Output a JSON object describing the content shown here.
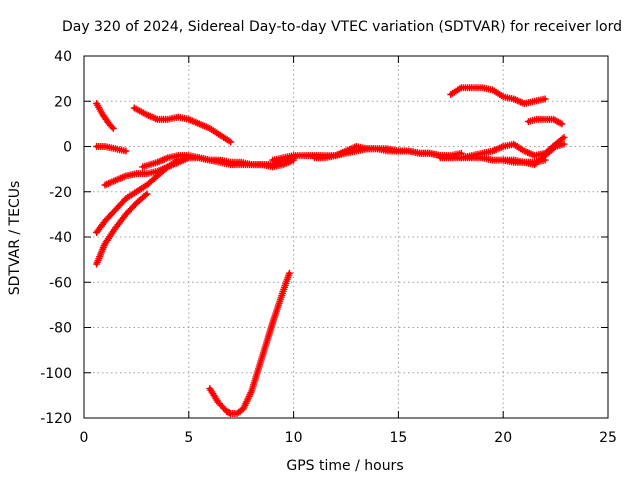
{
  "chart_data": {
    "type": "scatter",
    "title": "Day 320 of 2024, Sidereal Day-to-day VTEC variation (SDTVAR) for receiver lord",
    "xlabel": "GPS time / hours",
    "ylabel": "SDTVAR / TECUs",
    "xlim": [
      0,
      25
    ],
    "ylim": [
      -120,
      40
    ],
    "xticks": [
      0,
      5,
      10,
      15,
      20,
      25
    ],
    "yticks": [
      -120,
      -100,
      -80,
      -60,
      -40,
      -20,
      0,
      20,
      40
    ],
    "xtick_labels": [
      "0",
      "5",
      "10",
      "15",
      "20",
      "25"
    ],
    "ytick_labels": [
      "-120",
      "-100",
      "-80",
      "-60",
      "-40",
      "-20",
      "0",
      "20",
      "40"
    ],
    "grid": true,
    "marker": "+",
    "color": "#ff0000",
    "series": [
      {
        "name": "s1",
        "x": [
          0.6,
          0.9,
          1.2,
          1.4
        ],
        "y": [
          19,
          14,
          10,
          8
        ]
      },
      {
        "name": "s2",
        "x": [
          0.6,
          1.0,
          1.5,
          2.0
        ],
        "y": [
          0,
          0,
          -1,
          -2
        ]
      },
      {
        "name": "s3",
        "x": [
          2.4,
          3.0,
          3.5,
          4.0,
          4.5,
          5.0,
          5.5,
          6.0,
          6.5,
          7.0
        ],
        "y": [
          17,
          14,
          12,
          12,
          13,
          12,
          10,
          8,
          5,
          2
        ]
      },
      {
        "name": "s4",
        "x": [
          0.6,
          1.0,
          1.5,
          2.0,
          2.5,
          3.0,
          3.5,
          4.0,
          4.5
        ],
        "y": [
          -38,
          -33,
          -28,
          -23,
          -20,
          -17,
          -13,
          -9,
          -6
        ]
      },
      {
        "name": "s5",
        "x": [
          0.6,
          1.0,
          1.5,
          2.0,
          2.5,
          3.0
        ],
        "y": [
          -52,
          -43,
          -36,
          -30,
          -25,
          -21
        ]
      },
      {
        "name": "s6",
        "x": [
          1.0,
          1.5,
          2.0,
          2.5,
          3.0,
          3.5,
          4.0
        ],
        "y": [
          -17,
          -15,
          -13,
          -12,
          -12,
          -11,
          -9
        ]
      },
      {
        "name": "s7",
        "x": [
          2.8,
          3.5,
          4.0,
          4.5,
          5.0,
          5.5,
          6.0,
          6.5,
          7.0,
          7.5,
          8.0,
          8.5,
          9.0,
          9.5,
          10.0
        ],
        "y": [
          -9,
          -7,
          -5,
          -4,
          -4,
          -5,
          -6,
          -6,
          -7,
          -7,
          -8,
          -8,
          -8,
          -6,
          -5
        ]
      },
      {
        "name": "s8",
        "x": [
          3.5,
          4.0,
          4.5,
          5.0,
          5.5,
          6.0,
          6.5,
          7.0,
          7.5,
          8.0,
          8.5,
          9.0,
          9.5,
          10.0
        ],
        "y": [
          -12,
          -9,
          -7,
          -5,
          -5,
          -6,
          -7,
          -8,
          -8,
          -8,
          -8,
          -9,
          -8,
          -6
        ]
      },
      {
        "name": "s9",
        "x": [
          9.0,
          10.0,
          11.0,
          12.0,
          12.5,
          13.0,
          13.5,
          14.0,
          14.5,
          15.0,
          15.5,
          16.0,
          16.5,
          17.0,
          17.5,
          18.0
        ],
        "y": [
          -6,
          -4,
          -4,
          -4,
          -2,
          0,
          -1,
          -1,
          -1,
          -2,
          -2,
          -3,
          -3,
          -4,
          -4,
          -3
        ]
      },
      {
        "name": "s10",
        "x": [
          11.0,
          11.5,
          12.0,
          12.5,
          13.0,
          13.5,
          14.0,
          14.5,
          15.0,
          15.5,
          16.0,
          16.5,
          17.0
        ],
        "y": [
          -5,
          -5,
          -4,
          -3,
          -2,
          -1,
          -1,
          -2,
          -2,
          -2,
          -3,
          -3,
          -4
        ]
      },
      {
        "name": "s11",
        "x": [
          17.0,
          17.5,
          18.0,
          18.5,
          19.0,
          19.5,
          20.0,
          20.5,
          21.0,
          21.5,
          22.0
        ],
        "y": [
          -5,
          -5,
          -5,
          -5,
          -5,
          -6,
          -6,
          -7,
          -7,
          -7,
          -6
        ]
      },
      {
        "name": "s12",
        "x": [
          18.0,
          18.5,
          19.0,
          19.5,
          20.0,
          20.5,
          21.0,
          21.5,
          22.0,
          22.5,
          22.9
        ],
        "y": [
          -5,
          -4,
          -3,
          -2,
          0,
          1,
          -2,
          -4,
          -3,
          1,
          4
        ]
      },
      {
        "name": "s13",
        "x": [
          20.0,
          20.5,
          21.0,
          21.5,
          22.0,
          22.5,
          22.9
        ],
        "y": [
          -6,
          -6,
          -7,
          -8,
          -4,
          0,
          1
        ]
      },
      {
        "name": "s14",
        "x": [
          17.5,
          18.0,
          18.5,
          19.0,
          19.5,
          20.0,
          20.5,
          21.0,
          21.5,
          22.0
        ],
        "y": [
          23,
          26,
          26,
          26,
          25,
          22,
          21,
          19,
          20,
          21
        ]
      },
      {
        "name": "s15",
        "x": [
          21.2,
          21.6,
          22.0,
          22.4,
          22.8
        ],
        "y": [
          11,
          12,
          12,
          12,
          10
        ]
      },
      {
        "name": "s16",
        "x": [
          6.0,
          6.4,
          6.8,
          7.0,
          7.3,
          7.6,
          8.0,
          8.5,
          9.0,
          9.5,
          9.8
        ],
        "y": [
          -107,
          -113,
          -117,
          -118,
          -118,
          -116,
          -108,
          -93,
          -78,
          -64,
          -56
        ]
      }
    ]
  }
}
